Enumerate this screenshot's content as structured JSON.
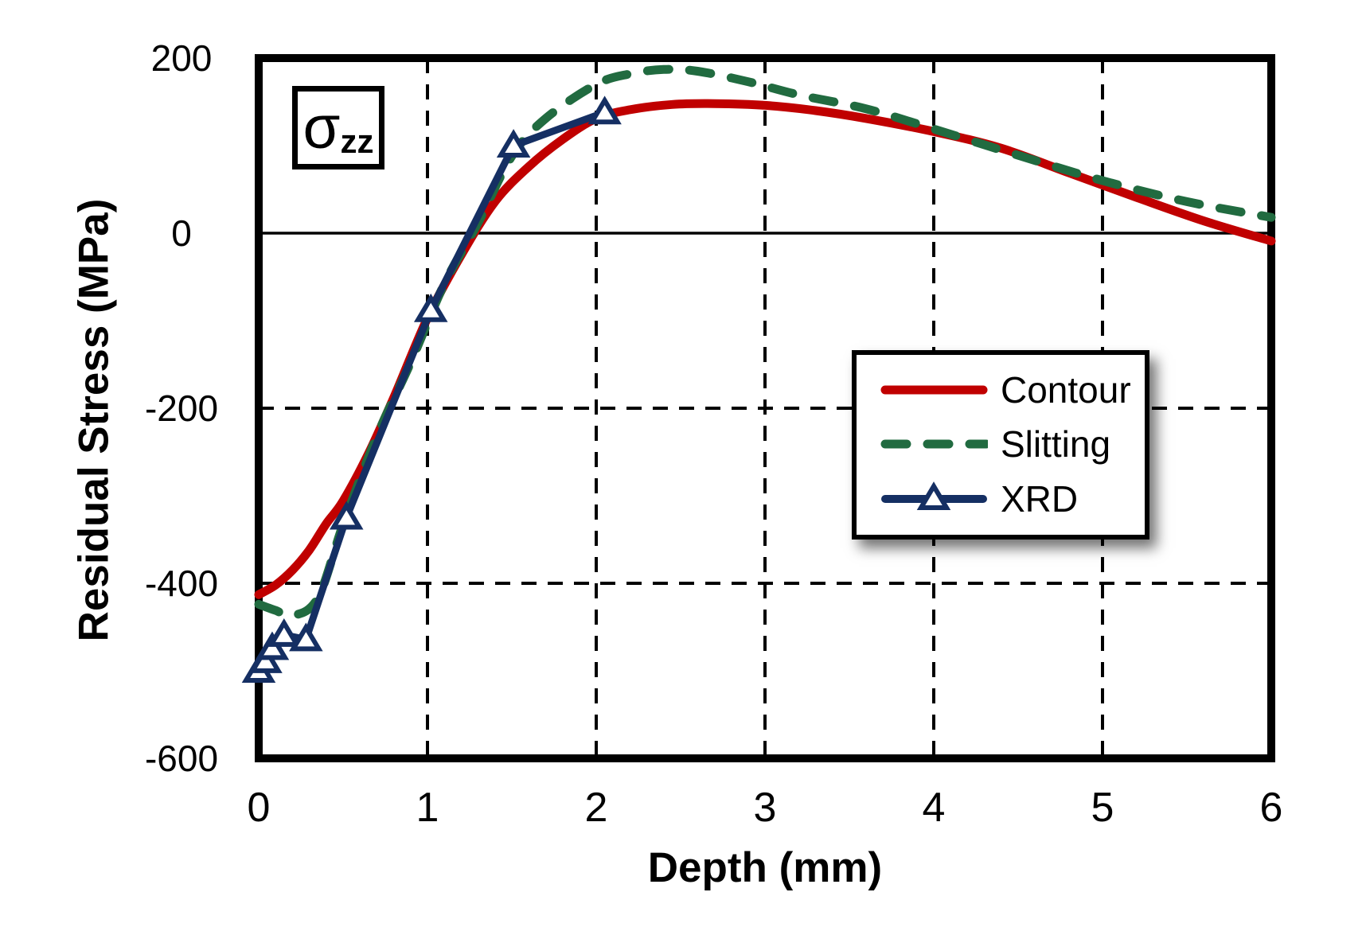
{
  "chart_data": {
    "type": "line",
    "title": "",
    "xlabel": "Depth (mm)",
    "ylabel": "Residual Stress (MPa)",
    "xlim": [
      0,
      6
    ],
    "ylim": [
      -600,
      200
    ],
    "x_ticks": [
      0,
      1,
      2,
      3,
      4,
      5,
      6
    ],
    "y_ticks": [
      200,
      0,
      -200,
      -400,
      -600
    ],
    "x_gridlines": [
      1,
      2,
      3,
      4,
      5
    ],
    "y_gridlines": [
      -200,
      -400
    ],
    "zero_line": 0,
    "grid_style": "dashed",
    "legend_position": "middle-right",
    "series": [
      {
        "name": "Contour",
        "color": "#c00000",
        "style": "solid",
        "marker": "none",
        "smooth": true,
        "width": 11,
        "x": [
          0,
          0.1,
          0.2,
          0.3,
          0.4,
          0.5,
          0.65,
          0.8,
          1.0,
          1.2,
          1.4,
          1.6,
          1.8,
          2.0,
          2.2,
          2.45,
          2.7,
          3.0,
          3.3,
          3.6,
          4.0,
          4.4,
          4.8,
          5.2,
          5.6,
          6.0
        ],
        "y": [
          -413,
          -402,
          -385,
          -362,
          -332,
          -306,
          -252,
          -188,
          -97,
          -25,
          36,
          76,
          107,
          131,
          141,
          147,
          148,
          146,
          140,
          131,
          116,
          97,
          69,
          41,
          14,
          -9
        ]
      },
      {
        "name": "Slitting",
        "color": "#216b40",
        "style": "dashed",
        "marker": "none",
        "smooth": true,
        "width": 11,
        "x": [
          0,
          0.1,
          0.2,
          0.35,
          0.5,
          0.7,
          0.9,
          1.1,
          1.3,
          1.5,
          1.7,
          2.0,
          2.2,
          2.4,
          2.6,
          2.9,
          3.2,
          3.6,
          4.0,
          4.5,
          5.0,
          5.5,
          6.0
        ],
        "y": [
          -424,
          -431,
          -437,
          -417,
          -333,
          -232,
          -148,
          -58,
          12,
          88,
          131,
          170,
          182,
          187,
          185,
          173,
          158,
          142,
          119,
          89,
          60,
          36,
          18
        ]
      },
      {
        "name": "XRD",
        "color": "#152f63",
        "style": "solid",
        "marker": "triangle-up",
        "smooth": false,
        "width": 9,
        "x": [
          0,
          0.04,
          0.08,
          0.15,
          0.28,
          0.52,
          1.02,
          1.51,
          2.05
        ],
        "y": [
          -500,
          -489,
          -474,
          -459,
          -464,
          -325,
          -88,
          100,
          138
        ]
      }
    ]
  },
  "annotation": {
    "symbol": "σ",
    "subscript": "zz"
  }
}
